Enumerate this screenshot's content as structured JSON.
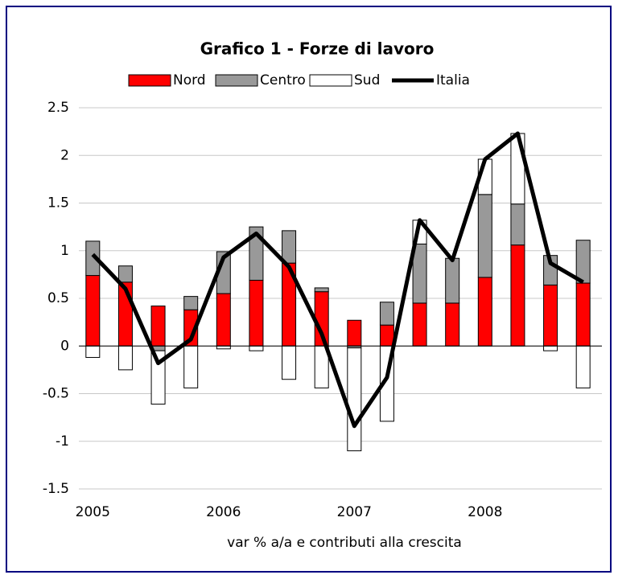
{
  "chart_data": {
    "type": "bar",
    "title": "Grafico 1 - Forze di lavoro",
    "x_label": "var % a/a e contributi alla crescita",
    "categories": [
      "2005",
      null,
      null,
      null,
      "2006",
      null,
      null,
      null,
      "2007",
      null,
      null,
      null,
      "2008",
      null,
      null,
      null
    ],
    "series": [
      {
        "name": "Nord",
        "type": "bar",
        "color": "#ff0000",
        "values": [
          0.74,
          0.67,
          0.42,
          0.38,
          0.55,
          0.69,
          0.87,
          0.57,
          0.27,
          0.22,
          0.45,
          0.45,
          0.72,
          1.06,
          0.64,
          0.66
        ]
      },
      {
        "name": "Centro",
        "type": "bar",
        "color": "#999999",
        "values": [
          0.36,
          0.17,
          -0.05,
          0.14,
          0.44,
          0.56,
          0.34,
          0.04,
          -0.02,
          0.24,
          0.62,
          0.47,
          0.87,
          0.43,
          0.31,
          0.45
        ]
      },
      {
        "name": "Sud",
        "type": "bar",
        "color": "#ffffff",
        "values": [
          -0.12,
          -0.25,
          -0.56,
          -0.44,
          -0.03,
          -0.05,
          -0.35,
          -0.44,
          -1.08,
          -0.79,
          0.25,
          0,
          0.37,
          0.74,
          -0.05,
          -0.44
        ]
      },
      {
        "name": "Italia",
        "type": "line",
        "color": "#000000",
        "values": [
          0.96,
          0.6,
          -0.18,
          0.07,
          0.93,
          1.18,
          0.83,
          0.13,
          -0.84,
          -0.33,
          1.32,
          0.9,
          1.96,
          2.23,
          0.87,
          0.67
        ]
      }
    ],
    "ylim": [
      -1.5,
      2.5
    ],
    "yticks": [
      -1.5,
      -1,
      -0.5,
      0,
      0.5,
      1,
      1.5,
      2,
      2.5
    ],
    "grid": true,
    "legend": "top"
  }
}
